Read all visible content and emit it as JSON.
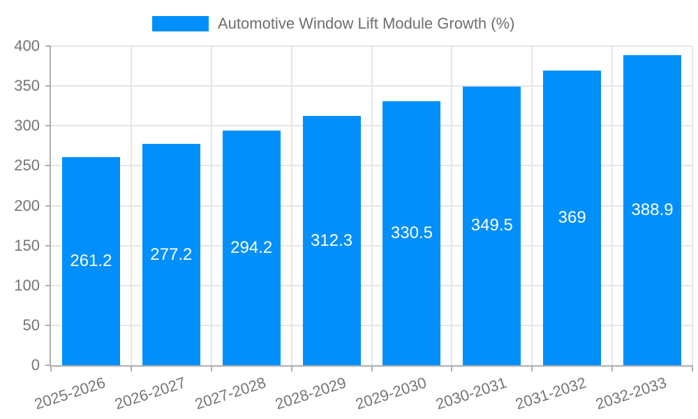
{
  "chart_data": {
    "type": "bar",
    "categories": [
      "2025-2026",
      "2026-2027",
      "2027-2028",
      "2028-2029",
      "2029-2030",
      "2030-2031",
      "2031-2032",
      "2032-2033"
    ],
    "series": [
      {
        "name": "Automotive Window Lift Module Growth (%)",
        "values": [
          261.2,
          277.2,
          294.2,
          312.3,
          330.5,
          349.5,
          369,
          388.9
        ]
      }
    ],
    "data_labels": [
      "261.2",
      "277.2",
      "294.2",
      "312.3",
      "330.5",
      "349.5",
      "369",
      "388.9"
    ],
    "xlabel": "",
    "ylabel": "",
    "ylim": [
      0,
      400
    ],
    "yticks": [
      0,
      50,
      100,
      150,
      200,
      250,
      300,
      350,
      400
    ],
    "grid": true,
    "legend_position": "top-center",
    "x_tick_rotation_deg": -18,
    "colors": {
      "bar": "#008FFB",
      "bar_label": "#FFFFFF",
      "axis_text": "#757575",
      "legend_text": "#6E6E6E",
      "gridline": "#E6E6E6",
      "axis_border": "#ADADAD",
      "background": "#FFFFFF"
    }
  }
}
